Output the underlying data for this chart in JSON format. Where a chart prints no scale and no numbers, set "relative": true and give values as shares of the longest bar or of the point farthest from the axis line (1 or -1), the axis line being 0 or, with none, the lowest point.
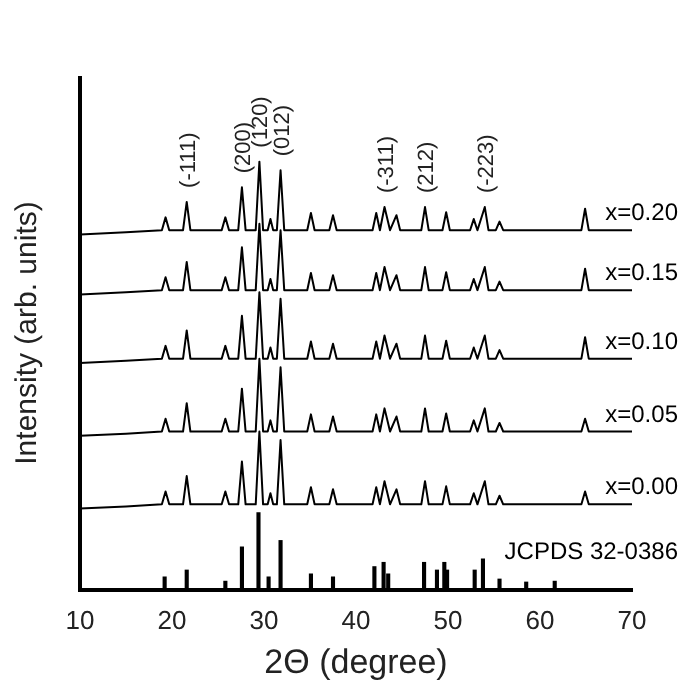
{
  "chart_data": {
    "type": "line",
    "relative": true,
    "xlabel": "2Θ (degree)",
    "ylabel": "Intensity (arb. units)",
    "xlim": [
      10,
      70
    ],
    "xticks": [
      10,
      20,
      30,
      40,
      50,
      60,
      70
    ],
    "grid": false,
    "legend": false,
    "marker": "none",
    "line_style": "solid",
    "x": [
      10,
      15,
      18.9,
      19.3,
      19.7,
      21.2,
      21.6,
      22.0,
      25.4,
      25.8,
      26.2,
      27.2,
      27.6,
      28.0,
      29.1,
      29.5,
      29.9,
      30.4,
      30.7,
      31.0,
      31.4,
      31.8,
      32.2,
      34.7,
      35.1,
      35.5,
      37.1,
      37.5,
      37.9,
      41.8,
      42.2,
      42.6,
      43.1,
      43.7,
      44.4,
      44.8,
      47.1,
      47.5,
      47.9,
      49.4,
      49.8,
      50.2,
      52.4,
      52.8,
      53.2,
      54.0,
      54.4,
      55.2,
      55.6,
      56.0,
      64.5,
      64.9,
      65.3,
      70
    ],
    "series": [
      {
        "name": "x=0.20",
        "color": "#000000",
        "values": [
          0.83,
          0.835,
          0.84,
          0.87,
          0.84,
          0.84,
          0.906,
          0.84,
          0.84,
          0.87,
          0.84,
          0.84,
          0.94,
          0.84,
          0.84,
          1.0,
          0.84,
          0.84,
          0.866,
          0.84,
          0.84,
          0.98,
          0.84,
          0.84,
          0.88,
          0.84,
          0.84,
          0.875,
          0.84,
          0.84,
          0.88,
          0.84,
          0.894,
          0.84,
          0.875,
          0.84,
          0.84,
          0.894,
          0.84,
          0.84,
          0.882,
          0.84,
          0.84,
          0.866,
          0.84,
          0.894,
          0.84,
          0.84,
          0.86,
          0.84,
          0.84,
          0.89,
          0.84,
          0.84
        ]
      },
      {
        "name": "x=0.15",
        "color": "#000000",
        "values": [
          0.69,
          0.695,
          0.7,
          0.73,
          0.7,
          0.7,
          0.766,
          0.7,
          0.7,
          0.73,
          0.7,
          0.7,
          0.8,
          0.7,
          0.7,
          0.855,
          0.7,
          0.7,
          0.726,
          0.7,
          0.7,
          0.84,
          0.7,
          0.7,
          0.74,
          0.7,
          0.7,
          0.735,
          0.7,
          0.7,
          0.74,
          0.7,
          0.754,
          0.7,
          0.735,
          0.7,
          0.7,
          0.754,
          0.7,
          0.7,
          0.742,
          0.7,
          0.7,
          0.726,
          0.7,
          0.754,
          0.7,
          0.7,
          0.72,
          0.7,
          0.7,
          0.75,
          0.7,
          0.7
        ]
      },
      {
        "name": "x=0.10",
        "color": "#000000",
        "values": [
          0.53,
          0.535,
          0.54,
          0.57,
          0.54,
          0.54,
          0.606,
          0.54,
          0.54,
          0.57,
          0.54,
          0.54,
          0.64,
          0.54,
          0.54,
          0.695,
          0.54,
          0.54,
          0.566,
          0.54,
          0.54,
          0.68,
          0.54,
          0.54,
          0.58,
          0.54,
          0.54,
          0.575,
          0.54,
          0.54,
          0.58,
          0.54,
          0.594,
          0.54,
          0.575,
          0.54,
          0.54,
          0.594,
          0.54,
          0.54,
          0.582,
          0.54,
          0.54,
          0.566,
          0.54,
          0.594,
          0.54,
          0.54,
          0.56,
          0.54,
          0.54,
          0.59,
          0.54,
          0.54
        ]
      },
      {
        "name": "x=0.05",
        "color": "#000000",
        "values": [
          0.36,
          0.365,
          0.37,
          0.4,
          0.37,
          0.37,
          0.436,
          0.37,
          0.37,
          0.4,
          0.37,
          0.37,
          0.47,
          0.37,
          0.37,
          0.54,
          0.37,
          0.37,
          0.396,
          0.37,
          0.37,
          0.52,
          0.37,
          0.37,
          0.41,
          0.37,
          0.37,
          0.405,
          0.37,
          0.37,
          0.41,
          0.37,
          0.424,
          0.37,
          0.405,
          0.37,
          0.37,
          0.424,
          0.37,
          0.37,
          0.412,
          0.37,
          0.37,
          0.396,
          0.37,
          0.424,
          0.37,
          0.37,
          0.39,
          0.37,
          0.37,
          0.4,
          0.37,
          0.37
        ]
      },
      {
        "name": "x=0.00",
        "color": "#000000",
        "values": [
          0.19,
          0.195,
          0.2,
          0.23,
          0.2,
          0.2,
          0.266,
          0.2,
          0.2,
          0.23,
          0.2,
          0.2,
          0.3,
          0.2,
          0.2,
          0.37,
          0.2,
          0.2,
          0.226,
          0.2,
          0.2,
          0.35,
          0.2,
          0.2,
          0.24,
          0.2,
          0.2,
          0.235,
          0.2,
          0.2,
          0.24,
          0.2,
          0.254,
          0.2,
          0.235,
          0.2,
          0.2,
          0.254,
          0.2,
          0.2,
          0.242,
          0.2,
          0.2,
          0.226,
          0.2,
          0.254,
          0.2,
          0.2,
          0.22,
          0.2,
          0.2,
          0.23,
          0.2,
          0.2
        ]
      },
      {
        "name": "JCPDS 32-0386",
        "type": "bar",
        "color": "#000000",
        "x": [
          19.2,
          21.6,
          25.8,
          27.6,
          29.4,
          30.5,
          31.8,
          35.1,
          37.5,
          42.0,
          43.0,
          43.5,
          47.4,
          48.8,
          49.6,
          49.9,
          52.9,
          53.8,
          55.6,
          58.5,
          61.6
        ],
        "values": [
          0.03,
          0.046,
          0.02,
          0.1,
          0.18,
          0.03,
          0.115,
          0.037,
          0.03,
          0.054,
          0.064,
          0.037,
          0.064,
          0.046,
          0.064,
          0.046,
          0.046,
          0.072,
          0.025,
          0.018,
          0.02
        ]
      }
    ],
    "annotations": [
      {
        "text": "(-111)",
        "x": 21.6,
        "y": 0.906
      },
      {
        "text": "(200)",
        "x": 27.6,
        "y": 0.94
      },
      {
        "text": "(120)",
        "x": 29.5,
        "y": 1.0
      },
      {
        "text": "(012)",
        "x": 31.8,
        "y": 0.98
      },
      {
        "text": "(-311)",
        "x": 43.1,
        "y": 0.894
      },
      {
        "text": "(212)",
        "x": 47.5,
        "y": 0.894
      },
      {
        "text": "(-223)",
        "x": 54.0,
        "y": 0.894
      }
    ]
  }
}
